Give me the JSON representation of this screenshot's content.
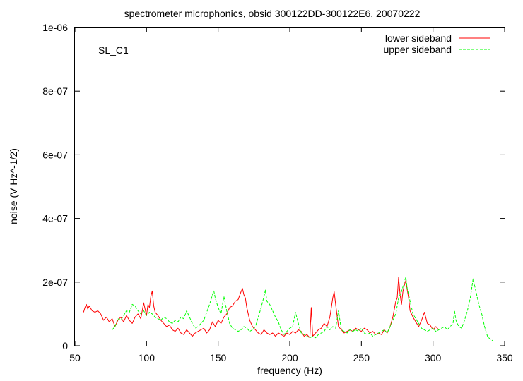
{
  "chart_data": {
    "type": "line",
    "title": "spectrometer microphonics, obsid 300122DD-300122E6, 20070222",
    "annotation": "SL_C1",
    "xlabel": "frequency (Hz)",
    "ylabel": "noise (V Hz^-1/2)",
    "xlim": [
      50,
      350
    ],
    "ylim": [
      0,
      1e-06
    ],
    "x_ticks": [
      50,
      100,
      150,
      200,
      250,
      300,
      350
    ],
    "x_tick_labels": [
      "50",
      "100",
      "150",
      "200",
      "250",
      "300",
      "350"
    ],
    "y_ticks": [
      0,
      2e-07,
      4e-07,
      6e-07,
      8e-07,
      1e-06
    ],
    "y_tick_labels": [
      "0",
      "2e-07",
      "4e-07",
      "6e-07",
      "8e-07",
      "1e-06"
    ],
    "grid": false,
    "legend_position": "top-right",
    "series": [
      {
        "name": "lower sideband",
        "color": "#ff0000",
        "dash": "solid",
        "x": [
          56,
          57,
          58,
          59,
          60,
          62,
          64,
          66,
          68,
          70,
          72,
          74,
          76,
          78,
          80,
          82,
          84,
          86,
          88,
          90,
          92,
          94,
          96,
          98,
          100,
          101,
          102,
          103,
          104,
          105,
          106,
          108,
          110,
          112,
          114,
          116,
          118,
          120,
          122,
          124,
          126,
          128,
          130,
          132,
          134,
          136,
          138,
          140,
          142,
          144,
          146,
          148,
          150,
          152,
          154,
          156,
          158,
          160,
          162,
          164,
          166,
          167,
          168,
          169,
          170,
          172,
          174,
          176,
          178,
          180,
          182,
          184,
          186,
          188,
          190,
          192,
          194,
          196,
          198,
          200,
          202,
          204,
          206,
          208,
          210,
          212,
          214,
          215,
          216,
          218,
          220,
          222,
          224,
          226,
          228,
          229,
          230,
          231,
          232,
          234,
          236,
          238,
          240,
          242,
          244,
          246,
          248,
          250,
          252,
          254,
          256,
          258,
          260,
          262,
          264,
          266,
          268,
          270,
          272,
          274,
          275,
          276,
          277,
          278,
          279,
          280,
          281,
          282,
          283,
          284,
          286,
          288,
          290,
          292,
          294,
          296,
          298,
          300,
          302,
          304
        ],
        "y": [
          1.05e-07,
          1.2e-07,
          1.3e-07,
          1.15e-07,
          1.25e-07,
          1.1e-07,
          1.05e-07,
          1.1e-07,
          1e-07,
          8e-08,
          9e-08,
          7.5e-08,
          8.5e-08,
          6e-08,
          8e-08,
          9e-08,
          7.5e-08,
          9.5e-08,
          8e-08,
          7e-08,
          9e-08,
          1e-07,
          8.5e-08,
          1.35e-07,
          9.5e-08,
          1.3e-07,
          1.2e-07,
          1.55e-07,
          1.72e-07,
          1.25e-07,
          1.05e-07,
          9.5e-08,
          8e-08,
          7e-08,
          6e-08,
          6.5e-08,
          5e-08,
          4.5e-08,
          5.5e-08,
          4e-08,
          3.5e-08,
          5e-08,
          4e-08,
          3e-08,
          4e-08,
          4.5e-08,
          5e-08,
          5.5e-08,
          4e-08,
          5e-08,
          7.5e-08,
          6e-08,
          8e-08,
          7e-08,
          9e-08,
          1e-07,
          1.2e-07,
          1.25e-07,
          1.4e-07,
          1.45e-07,
          1.7e-07,
          1.8e-07,
          1.6e-07,
          1.5e-07,
          1.2e-07,
          8e-08,
          6e-08,
          5e-08,
          4e-08,
          3.5e-08,
          5e-08,
          4e-08,
          3.5e-08,
          4e-08,
          3e-08,
          4e-08,
          3.5e-08,
          3e-08,
          4e-08,
          3.5e-08,
          4.5e-08,
          4e-08,
          5e-08,
          4.5e-08,
          3e-08,
          3.5e-08,
          2.5e-08,
          1.2e-07,
          3e-08,
          4e-08,
          5e-08,
          5.5e-08,
          7e-08,
          6e-08,
          9e-08,
          1.2e-07,
          1.5e-07,
          1.7e-07,
          1.3e-07,
          6e-08,
          5e-08,
          4e-08,
          4.5e-08,
          5e-08,
          4.5e-08,
          5.5e-08,
          5e-08,
          4.5e-08,
          5.5e-08,
          5e-08,
          4e-08,
          4.5e-08,
          3.5e-08,
          4e-08,
          3.5e-08,
          5e-08,
          4e-08,
          6e-08,
          9e-08,
          1.4e-07,
          1.5e-07,
          2.15e-07,
          1.6e-07,
          1.3e-07,
          1.7e-07,
          1.9e-07,
          2.05e-07,
          1.75e-07,
          1.5e-07,
          1.1e-07,
          9e-08,
          7.5e-08,
          6e-08,
          8e-08,
          1.05e-07,
          7e-08,
          6.5e-08,
          5e-08,
          6e-08,
          5e-08
        ]
      },
      {
        "name": "upper sideband",
        "color": "#00ff00",
        "dash": "dashed",
        "x": [
          76,
          78,
          80,
          82,
          84,
          86,
          88,
          90,
          92,
          94,
          96,
          98,
          100,
          102,
          104,
          106,
          108,
          110,
          112,
          114,
          116,
          118,
          120,
          122,
          124,
          126,
          128,
          130,
          132,
          134,
          136,
          138,
          140,
          142,
          144,
          146,
          147,
          148,
          150,
          152,
          154,
          156,
          158,
          160,
          162,
          164,
          166,
          168,
          170,
          172,
          174,
          176,
          178,
          180,
          182,
          183,
          184,
          186,
          188,
          190,
          192,
          194,
          196,
          198,
          200,
          202,
          204,
          206,
          208,
          210,
          212,
          214,
          216,
          218,
          220,
          222,
          224,
          226,
          228,
          230,
          232,
          234,
          236,
          238,
          240,
          242,
          244,
          246,
          248,
          250,
          252,
          254,
          256,
          258,
          260,
          262,
          264,
          266,
          268,
          270,
          272,
          274,
          276,
          278,
          280,
          281,
          282,
          284,
          286,
          288,
          290,
          292,
          294,
          296,
          298,
          300,
          302,
          304,
          306,
          308,
          310,
          312,
          314,
          315,
          316,
          318,
          320,
          322,
          324,
          326,
          327,
          328,
          329,
          330,
          332,
          334,
          336,
          338,
          340,
          342
        ],
        "y": [
          5e-08,
          6e-08,
          8.5e-08,
          8e-08,
          9.5e-08,
          1.1e-07,
          1.05e-07,
          1.3e-07,
          1.25e-07,
          1.1e-07,
          1e-07,
          1.1e-07,
          9.5e-08,
          1.05e-07,
          1e-07,
          9e-08,
          8.5e-08,
          8e-08,
          9e-08,
          8.5e-08,
          7.5e-08,
          7e-08,
          8e-08,
          7.5e-08,
          9e-08,
          8.5e-08,
          1.1e-07,
          9e-08,
          7e-08,
          5.5e-08,
          6e-08,
          7e-08,
          8e-08,
          1.05e-07,
          1.3e-07,
          1.6e-07,
          1.72e-07,
          1.5e-07,
          1.2e-07,
          1e-07,
          1.55e-07,
          1.1e-07,
          7e-08,
          5.5e-08,
          5e-08,
          4.5e-08,
          5e-08,
          6e-08,
          5.5e-08,
          4.5e-08,
          5e-08,
          6e-08,
          9e-08,
          1.2e-07,
          1.55e-07,
          1.75e-07,
          1.4e-07,
          1.3e-07,
          1.1e-07,
          9e-08,
          7.5e-08,
          5e-08,
          3.5e-08,
          4.5e-08,
          5.5e-08,
          6e-08,
          1.05e-07,
          7e-08,
          4e-08,
          3.5e-08,
          3e-08,
          2.5e-08,
          3e-08,
          2.5e-08,
          3.5e-08,
          4e-08,
          4.5e-08,
          6e-08,
          5e-08,
          6e-08,
          5.5e-08,
          1.1e-07,
          5e-08,
          4.5e-08,
          4e-08,
          5e-08,
          4.5e-08,
          5e-08,
          4.5e-08,
          5.5e-08,
          4e-08,
          3.5e-08,
          4e-08,
          3e-08,
          3.5e-08,
          4e-08,
          4.5e-08,
          5e-08,
          4e-08,
          6e-08,
          8e-08,
          1e-07,
          1.5e-07,
          1.7e-07,
          2e-07,
          2.15e-07,
          1.8e-07,
          1.4e-07,
          1e-07,
          8.5e-08,
          7e-08,
          5.5e-08,
          5e-08,
          4.5e-08,
          5e-08,
          5.5e-08,
          4.5e-08,
          5e-08,
          5.5e-08,
          6e-08,
          5e-08,
          6e-08,
          7e-08,
          1.1e-07,
          8e-08,
          6e-08,
          5.5e-08,
          8e-08,
          1.1e-07,
          1.5e-07,
          1.8e-07,
          2.1e-07,
          1.9e-07,
          1.7e-07,
          1.3e-07,
          1e-07,
          6e-08,
          3e-08,
          2e-08,
          1.5e-08
        ]
      }
    ]
  }
}
